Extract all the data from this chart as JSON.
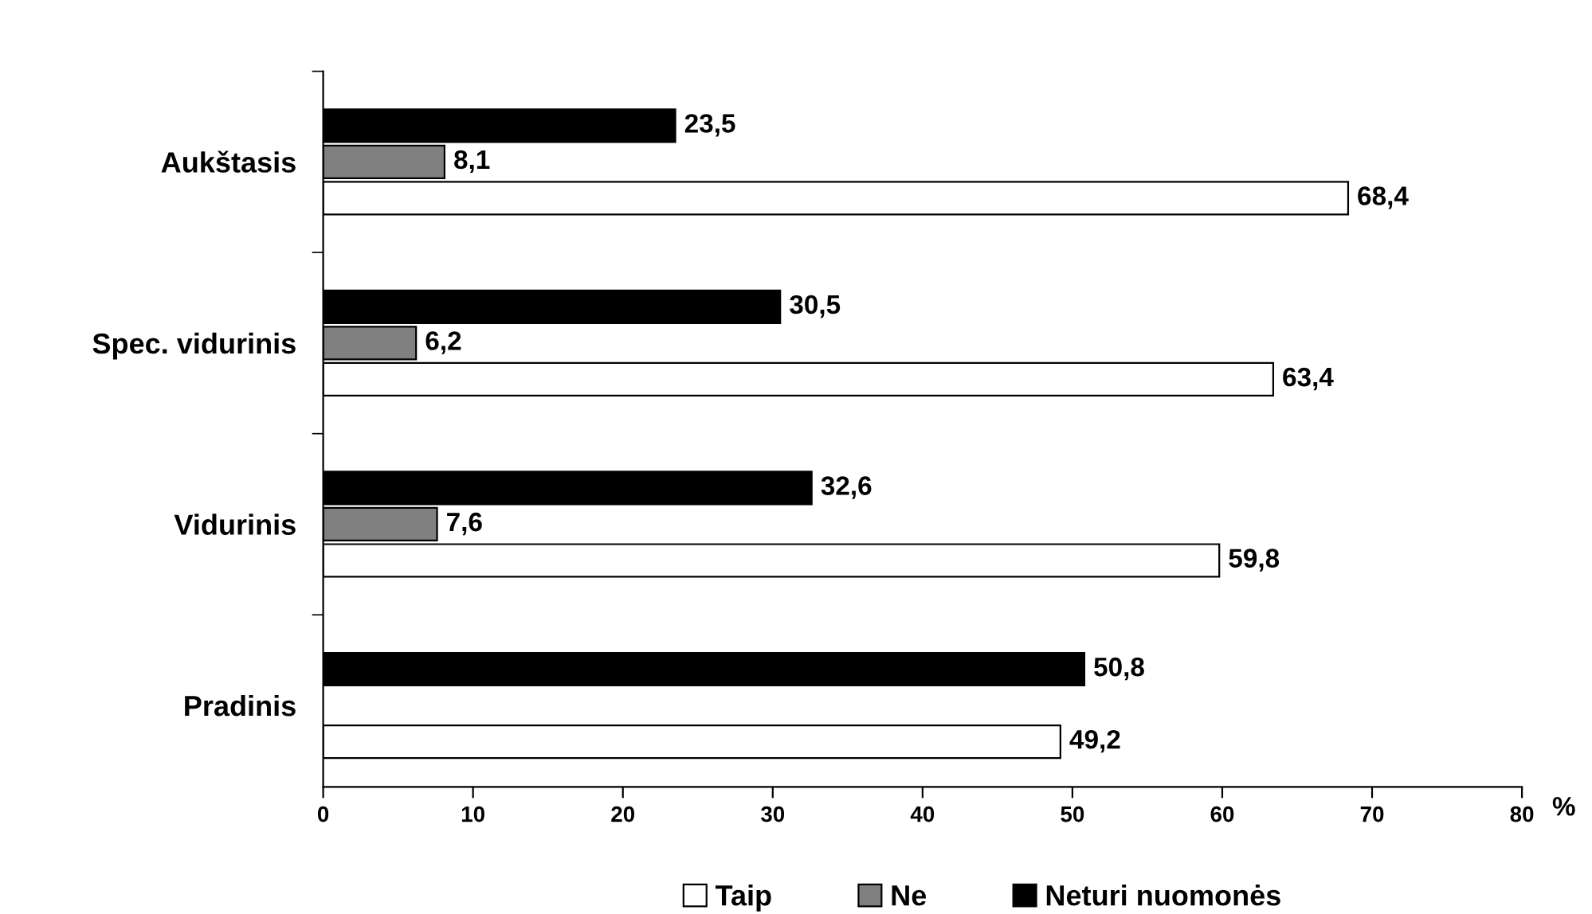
{
  "chart_data": {
    "type": "bar",
    "orientation": "horizontal",
    "categories": [
      "Aukštasis",
      "Spec. vidurinis",
      "Vidurinis",
      "Pradinis"
    ],
    "series": [
      {
        "name": "Taip",
        "color": "#ffffff",
        "values": [
          68.4,
          63.4,
          59.8,
          49.2
        ],
        "value_labels": [
          "68,4",
          "63,4",
          "59,8",
          "49,2"
        ]
      },
      {
        "name": "Ne",
        "color": "#808080",
        "values": [
          8.1,
          6.2,
          7.6,
          null
        ],
        "value_labels": [
          "8,1",
          "6,2",
          "7,6",
          null
        ]
      },
      {
        "name": "Neturi nuomonės",
        "color": "#000000",
        "values": [
          23.5,
          30.5,
          32.6,
          50.8
        ],
        "value_labels": [
          "23,5",
          "30,5",
          "32,6",
          "50,8"
        ]
      }
    ],
    "xlabel": "%",
    "xlim": [
      0,
      80
    ],
    "xticks": [
      0,
      10,
      20,
      30,
      40,
      50,
      60,
      70,
      80
    ],
    "grid": false,
    "legend": "bottom"
  }
}
